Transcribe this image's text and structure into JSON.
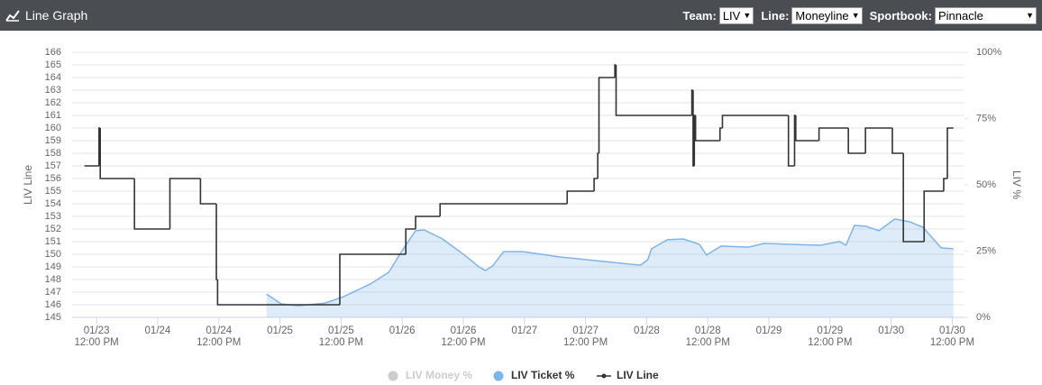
{
  "header": {
    "title": "Line Graph",
    "controls": [
      {
        "label": "Team:",
        "value": "LIV"
      },
      {
        "label": "Line:",
        "value": "Moneyline"
      },
      {
        "label": "Sportbook:",
        "value": "Pinnacle"
      }
    ]
  },
  "chart_data": {
    "type": "line",
    "y_label": "LIV Line",
    "y2_label": "LIV %",
    "xlim": [
      23.3,
      30.6
    ],
    "xticks": [
      {
        "value": 23.5,
        "label": "01/23 12:00 PM"
      },
      {
        "value": 24,
        "label": "01/24"
      },
      {
        "value": 24.5,
        "label": "01/24 12:00 PM"
      },
      {
        "value": 25,
        "label": "01/25"
      },
      {
        "value": 25.5,
        "label": "01/25 12:00 PM"
      },
      {
        "value": 26,
        "label": "01/26"
      },
      {
        "value": 26.5,
        "label": "01/26 12:00 PM"
      },
      {
        "value": 27,
        "label": "01/27"
      },
      {
        "value": 27.5,
        "label": "01/27 12:00 PM"
      },
      {
        "value": 28,
        "label": "01/28"
      },
      {
        "value": 28.5,
        "label": "01/28 12:00 PM"
      },
      {
        "value": 29,
        "label": "01/29"
      },
      {
        "value": 29.5,
        "label": "01/29 12:00 PM"
      },
      {
        "value": 30,
        "label": "01/30"
      },
      {
        "value": 30.5,
        "label": "01/30 12:00 PM"
      }
    ],
    "ylim": [
      145,
      166
    ],
    "yticks": [
      145,
      146,
      147,
      148,
      149,
      150,
      151,
      152,
      153,
      154,
      155,
      156,
      157,
      158,
      159,
      160,
      161,
      162,
      163,
      164,
      165,
      166
    ],
    "y2lim": [
      0,
      100
    ],
    "y2ticks": [
      {
        "value": 0,
        "label": "0%"
      },
      {
        "value": 25,
        "label": "25%"
      },
      {
        "value": 50,
        "label": "50%"
      },
      {
        "value": 75,
        "label": "75%"
      },
      {
        "value": 100,
        "label": "100%"
      }
    ],
    "grid": true,
    "series": [
      {
        "name": "LIV Money %",
        "color": "#cccccc",
        "axis": "y2",
        "kind": "area",
        "x": [],
        "values": []
      },
      {
        "name": "LIV Ticket %",
        "color": "#7cb5ec",
        "axis": "y2",
        "kind": "area",
        "x": [
          24.89,
          25.01,
          25.15,
          25.37,
          25.52,
          25.74,
          25.89,
          26.0,
          26.11,
          26.18,
          26.33,
          26.51,
          26.63,
          26.68,
          26.74,
          26.83,
          26.99,
          27.29,
          27.73,
          27.95,
          28.01,
          28.04,
          28.17,
          28.3,
          28.43,
          28.49,
          28.61,
          28.83,
          28.96,
          29.42,
          29.58,
          29.63,
          29.7,
          29.79,
          29.9,
          30.03,
          30.15,
          30.26,
          30.41,
          30.51
        ],
        "values": [
          8.8,
          5.1,
          4.4,
          5.4,
          7.8,
          12.6,
          17.0,
          25.2,
          32.7,
          33.0,
          29.6,
          23.5,
          19.0,
          17.7,
          19.4,
          24.8,
          24.8,
          22.8,
          20.7,
          19.7,
          21.8,
          25.9,
          29.3,
          29.6,
          27.6,
          23.5,
          26.9,
          26.5,
          27.9,
          27.2,
          28.6,
          27.2,
          34.7,
          34.4,
          32.7,
          37.1,
          36.1,
          34.0,
          26.2,
          25.9
        ]
      },
      {
        "name": "LIV Line",
        "color": "#333333",
        "axis": "y",
        "kind": "step",
        "x": [
          23.4,
          23.52,
          23.53,
          23.81,
          24.1,
          24.35,
          24.48,
          24.49,
          25.49,
          26.03,
          26.11,
          26.31,
          27.35,
          27.57,
          27.6,
          27.61,
          27.74,
          27.75,
          28.37,
          28.38,
          28.39,
          28.4,
          28.6,
          28.62,
          29.16,
          29.21,
          29.22,
          29.41,
          29.65,
          29.79,
          30.01,
          30.1,
          30.27,
          30.43,
          30.46,
          30.51
        ],
        "values": [
          157,
          160,
          156,
          152,
          156,
          154,
          148,
          146,
          150,
          152,
          153,
          154,
          155,
          156,
          158,
          164,
          165,
          161,
          163,
          157,
          161,
          159,
          160,
          161,
          157,
          161,
          159,
          160,
          158,
          160,
          158,
          151,
          155,
          156,
          160,
          160
        ]
      }
    ]
  }
}
